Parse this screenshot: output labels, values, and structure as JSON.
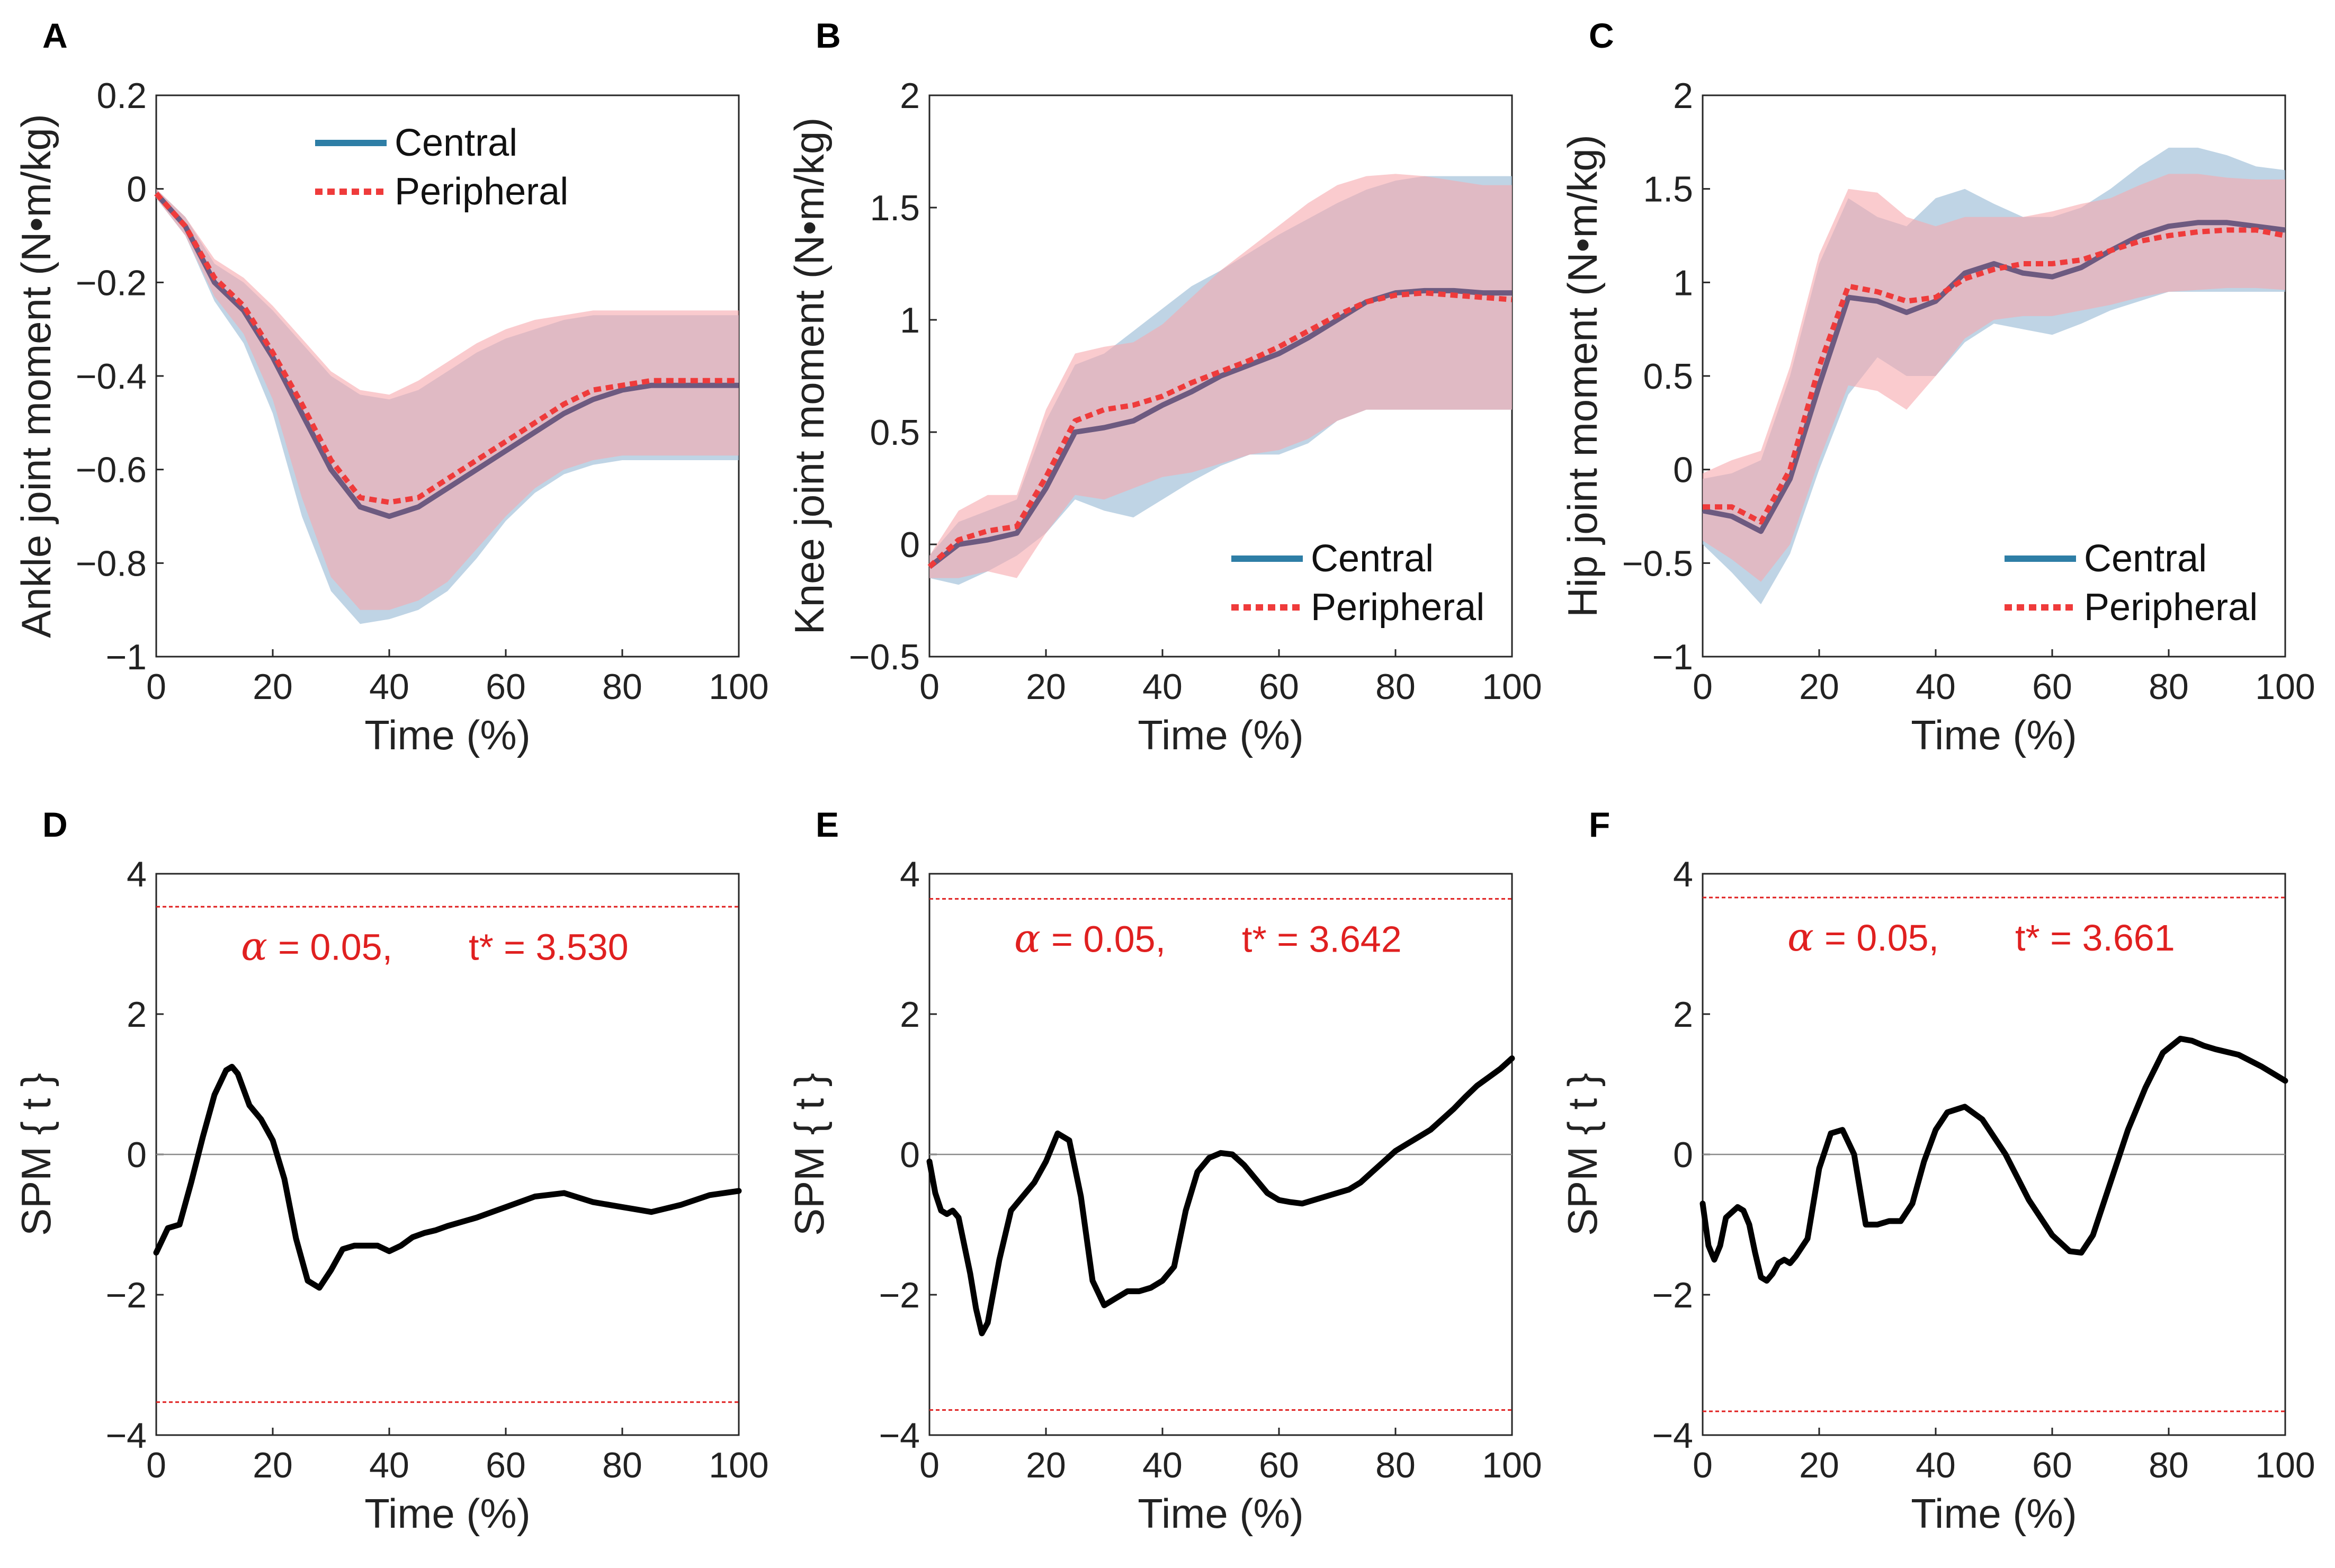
{
  "colors": {
    "central": "#2e7ea6",
    "central_band": "#a9c6dc",
    "peripheral": "#ef3b3b",
    "peripheral_band": "#f6a9ad",
    "overlap_line": "#6d5a80",
    "spm": "#000000",
    "threshold": "#e02020",
    "axis": "#262626"
  },
  "chart_data": [
    {
      "panel": "A",
      "type": "line",
      "title": "",
      "xlabel": "Time (%)",
      "ylabel": "Ankle joint moment (N•m/kg)",
      "xlim": [
        0,
        100
      ],
      "ylim": [
        -1,
        0.2
      ],
      "xticks": [
        "0",
        "20",
        "40",
        "60",
        "80",
        "100"
      ],
      "yticks": [
        "−1",
        "−0.8",
        "−0.6",
        "−0.4",
        "−0.2",
        "0",
        "0.2"
      ],
      "legend": [
        "Central",
        "Peripheral"
      ],
      "legend_position": "top-center",
      "x": [
        0,
        5,
        10,
        15,
        20,
        25,
        30,
        35,
        40,
        45,
        50,
        55,
        60,
        65,
        70,
        75,
        80,
        85,
        90,
        95,
        100
      ],
      "series": [
        {
          "name": "Central",
          "style": "solid",
          "values": [
            -0.01,
            -0.08,
            -0.2,
            -0.26,
            -0.36,
            -0.48,
            -0.6,
            -0.68,
            -0.7,
            -0.68,
            -0.64,
            -0.6,
            -0.56,
            -0.52,
            -0.48,
            -0.45,
            -0.43,
            -0.42,
            -0.42,
            -0.42,
            -0.42
          ],
          "band_upper": [
            0,
            -0.06,
            -0.16,
            -0.2,
            -0.26,
            -0.33,
            -0.4,
            -0.44,
            -0.45,
            -0.43,
            -0.39,
            -0.35,
            -0.32,
            -0.3,
            -0.28,
            -0.27,
            -0.27,
            -0.27,
            -0.27,
            -0.27,
            -0.27
          ],
          "band_lower": [
            -0.02,
            -0.1,
            -0.24,
            -0.33,
            -0.48,
            -0.7,
            -0.86,
            -0.93,
            -0.92,
            -0.9,
            -0.86,
            -0.79,
            -0.71,
            -0.65,
            -0.61,
            -0.59,
            -0.58,
            -0.58,
            -0.58,
            -0.58,
            -0.58
          ]
        },
        {
          "name": "Peripheral",
          "style": "dotted",
          "values": [
            -0.01,
            -0.08,
            -0.19,
            -0.25,
            -0.35,
            -0.46,
            -0.58,
            -0.66,
            -0.67,
            -0.66,
            -0.62,
            -0.58,
            -0.54,
            -0.5,
            -0.46,
            -0.43,
            -0.42,
            -0.41,
            -0.41,
            -0.41,
            -0.41
          ],
          "band_upper": [
            0,
            -0.06,
            -0.15,
            -0.19,
            -0.25,
            -0.32,
            -0.39,
            -0.43,
            -0.44,
            -0.41,
            -0.37,
            -0.33,
            -0.3,
            -0.28,
            -0.27,
            -0.26,
            -0.26,
            -0.26,
            -0.26,
            -0.26,
            -0.26
          ],
          "band_lower": [
            -0.02,
            -0.1,
            -0.23,
            -0.31,
            -0.45,
            -0.66,
            -0.83,
            -0.9,
            -0.9,
            -0.88,
            -0.84,
            -0.77,
            -0.7,
            -0.64,
            -0.6,
            -0.58,
            -0.57,
            -0.57,
            -0.57,
            -0.57,
            -0.57
          ]
        }
      ]
    },
    {
      "panel": "B",
      "type": "line",
      "title": "",
      "xlabel": "Time (%)",
      "ylabel": "Knee joint moment (N•m/kg)",
      "xlim": [
        0,
        100
      ],
      "ylim": [
        -0.5,
        2
      ],
      "xticks": [
        "0",
        "20",
        "40",
        "60",
        "80",
        "100"
      ],
      "yticks": [
        "−0.5",
        "0",
        "0.5",
        "1",
        "1.5",
        "2"
      ],
      "legend": [
        "Central",
        "Peripheral"
      ],
      "legend_position": "bottom-right",
      "x": [
        0,
        5,
        10,
        15,
        20,
        25,
        30,
        35,
        40,
        45,
        50,
        55,
        60,
        65,
        70,
        75,
        80,
        85,
        90,
        95,
        100
      ],
      "series": [
        {
          "name": "Central",
          "style": "solid",
          "values": [
            -0.1,
            0,
            0.02,
            0.05,
            0.25,
            0.5,
            0.52,
            0.55,
            0.62,
            0.68,
            0.75,
            0.8,
            0.85,
            0.92,
            1.0,
            1.08,
            1.12,
            1.13,
            1.13,
            1.12,
            1.12
          ],
          "band_upper": [
            -0.05,
            0.1,
            0.15,
            0.2,
            0.55,
            0.8,
            0.85,
            0.95,
            1.05,
            1.15,
            1.22,
            1.3,
            1.38,
            1.45,
            1.52,
            1.58,
            1.62,
            1.64,
            1.64,
            1.64,
            1.64
          ],
          "band_lower": [
            -0.15,
            -0.18,
            -0.12,
            -0.05,
            0.05,
            0.2,
            0.15,
            0.12,
            0.2,
            0.28,
            0.35,
            0.4,
            0.4,
            0.45,
            0.55,
            0.6,
            0.6,
            0.6,
            0.6,
            0.6,
            0.6
          ]
        },
        {
          "name": "Peripheral",
          "style": "dotted",
          "values": [
            -0.1,
            0.02,
            0.06,
            0.08,
            0.3,
            0.55,
            0.6,
            0.62,
            0.66,
            0.72,
            0.77,
            0.82,
            0.88,
            0.95,
            1.02,
            1.08,
            1.11,
            1.12,
            1.11,
            1.1,
            1.09
          ],
          "band_upper": [
            -0.05,
            0.15,
            0.22,
            0.22,
            0.6,
            0.85,
            0.88,
            0.9,
            0.98,
            1.1,
            1.22,
            1.32,
            1.42,
            1.52,
            1.6,
            1.64,
            1.65,
            1.64,
            1.62,
            1.6,
            1.6
          ],
          "band_lower": [
            -0.15,
            -0.15,
            -0.12,
            -0.15,
            0.05,
            0.22,
            0.2,
            0.25,
            0.3,
            0.32,
            0.36,
            0.4,
            0.42,
            0.47,
            0.55,
            0.6,
            0.6,
            0.6,
            0.6,
            0.6,
            0.6
          ]
        }
      ]
    },
    {
      "panel": "C",
      "type": "line",
      "title": "",
      "xlabel": "Time (%)",
      "ylabel": "Hip joint moment (N•m/kg)",
      "xlim": [
        0,
        100
      ],
      "ylim": [
        -1,
        2
      ],
      "xticks": [
        "0",
        "20",
        "40",
        "60",
        "80",
        "100"
      ],
      "yticks": [
        "−1",
        "−0.5",
        "0",
        "0.5",
        "1",
        "1.5",
        "2"
      ],
      "legend": [
        "Central",
        "Peripheral"
      ],
      "legend_position": "bottom-right",
      "x": [
        0,
        5,
        10,
        15,
        20,
        25,
        30,
        35,
        40,
        45,
        50,
        55,
        60,
        65,
        70,
        75,
        80,
        85,
        90,
        95,
        100
      ],
      "series": [
        {
          "name": "Central",
          "style": "solid",
          "values": [
            -0.22,
            -0.25,
            -0.33,
            -0.05,
            0.45,
            0.92,
            0.9,
            0.84,
            0.9,
            1.05,
            1.1,
            1.05,
            1.03,
            1.08,
            1.17,
            1.25,
            1.3,
            1.32,
            1.32,
            1.3,
            1.28
          ],
          "band_upper": [
            -0.05,
            -0.02,
            0.05,
            0.5,
            1.1,
            1.45,
            1.35,
            1.3,
            1.45,
            1.5,
            1.42,
            1.35,
            1.35,
            1.4,
            1.5,
            1.62,
            1.72,
            1.72,
            1.68,
            1.62,
            1.6
          ],
          "band_lower": [
            -0.4,
            -0.55,
            -0.72,
            -0.45,
            0.0,
            0.4,
            0.6,
            0.5,
            0.5,
            0.68,
            0.78,
            0.75,
            0.72,
            0.78,
            0.85,
            0.9,
            0.95,
            0.95,
            0.95,
            0.95,
            0.95
          ]
        },
        {
          "name": "Peripheral",
          "style": "dotted",
          "values": [
            -0.2,
            -0.2,
            -0.28,
            0.0,
            0.55,
            0.98,
            0.95,
            0.9,
            0.92,
            1.02,
            1.07,
            1.1,
            1.1,
            1.12,
            1.17,
            1.22,
            1.25,
            1.27,
            1.28,
            1.28,
            1.25
          ],
          "band_upper": [
            -0.02,
            0.05,
            0.1,
            0.55,
            1.15,
            1.5,
            1.48,
            1.35,
            1.3,
            1.35,
            1.35,
            1.35,
            1.38,
            1.42,
            1.45,
            1.52,
            1.58,
            1.58,
            1.56,
            1.55,
            1.55
          ],
          "band_lower": [
            -0.38,
            -0.48,
            -0.6,
            -0.4,
            0.05,
            0.45,
            0.42,
            0.32,
            0.5,
            0.7,
            0.8,
            0.82,
            0.82,
            0.85,
            0.88,
            0.92,
            0.95,
            0.96,
            0.97,
            0.97,
            0.96
          ]
        }
      ]
    },
    {
      "panel": "D",
      "type": "line",
      "title": "",
      "xlabel": "Time (%)",
      "ylabel": "SPM { t }",
      "xlim": [
        0,
        100
      ],
      "ylim": [
        -4,
        4
      ],
      "xticks": [
        "0",
        "20",
        "40",
        "60",
        "80",
        "100"
      ],
      "yticks": [
        "−4",
        "−2",
        "0",
        "2",
        "4"
      ],
      "threshold": 3.53,
      "annotation_alpha": "α",
      "annotation_text": " = 0.05,",
      "annotation_t": "t* = 3.530",
      "x": [
        0,
        2,
        4,
        6,
        8,
        10,
        12,
        13,
        14,
        16,
        18,
        20,
        22,
        24,
        26,
        28,
        30,
        32,
        34,
        36,
        38,
        40,
        42,
        44,
        46,
        48,
        50,
        55,
        60,
        65,
        70,
        75,
        80,
        85,
        90,
        95,
        100
      ],
      "series": [
        {
          "name": "SPM{t}",
          "style": "solid",
          "values": [
            -1.4,
            -1.05,
            -1.0,
            -0.4,
            0.25,
            0.85,
            1.2,
            1.25,
            1.15,
            0.7,
            0.5,
            0.2,
            -0.35,
            -1.2,
            -1.8,
            -1.9,
            -1.65,
            -1.35,
            -1.3,
            -1.3,
            -1.3,
            -1.38,
            -1.3,
            -1.18,
            -1.12,
            -1.08,
            -1.02,
            -0.9,
            -0.75,
            -0.6,
            -0.55,
            -0.68,
            -0.75,
            -0.82,
            -0.72,
            -0.58,
            -0.52
          ]
        }
      ]
    },
    {
      "panel": "E",
      "type": "line",
      "title": "",
      "xlabel": "Time (%)",
      "ylabel": "SPM { t }",
      "xlim": [
        0,
        100
      ],
      "ylim": [
        -4,
        4
      ],
      "xticks": [
        "0",
        "20",
        "40",
        "60",
        "80",
        "100"
      ],
      "yticks": [
        "−4",
        "−2",
        "0",
        "2",
        "4"
      ],
      "threshold": 3.642,
      "annotation_alpha": "α",
      "annotation_text": " = 0.05,",
      "annotation_t": "t* = 3.642",
      "x": [
        0,
        1,
        2,
        3,
        4,
        5,
        6,
        7,
        8,
        9,
        10,
        12,
        14,
        16,
        18,
        20,
        22,
        24,
        26,
        28,
        30,
        32,
        34,
        36,
        38,
        40,
        42,
        44,
        46,
        48,
        50,
        52,
        54,
        56,
        58,
        60,
        62,
        64,
        66,
        68,
        70,
        72,
        74,
        76,
        78,
        80,
        82,
        84,
        86,
        88,
        90,
        92,
        94,
        96,
        98,
        100
      ],
      "series": [
        {
          "name": "SPM{t}",
          "style": "solid",
          "values": [
            -0.1,
            -0.55,
            -0.8,
            -0.85,
            -0.8,
            -0.9,
            -1.3,
            -1.7,
            -2.2,
            -2.55,
            -2.4,
            -1.5,
            -0.8,
            -0.6,
            -0.4,
            -0.1,
            0.3,
            0.2,
            -0.6,
            -1.8,
            -2.15,
            -2.05,
            -1.95,
            -1.95,
            -1.9,
            -1.8,
            -1.6,
            -0.8,
            -0.25,
            -0.05,
            0.02,
            0.0,
            -0.15,
            -0.35,
            -0.55,
            -0.65,
            -0.68,
            -0.7,
            -0.65,
            -0.6,
            -0.55,
            -0.5,
            -0.4,
            -0.25,
            -0.1,
            0.05,
            0.15,
            0.25,
            0.35,
            0.5,
            0.65,
            0.82,
            0.98,
            1.1,
            1.22,
            1.37
          ]
        }
      ]
    },
    {
      "panel": "F",
      "type": "line",
      "title": "",
      "xlabel": "Time (%)",
      "ylabel": "SPM { t }",
      "xlim": [
        0,
        100
      ],
      "ylim": [
        -4,
        4
      ],
      "xticks": [
        "0",
        "20",
        "40",
        "60",
        "80",
        "100"
      ],
      "yticks": [
        "−4",
        "−2",
        "0",
        "2",
        "4"
      ],
      "threshold": 3.661,
      "annotation_alpha": "α",
      "annotation_text": " = 0.05,",
      "annotation_t": "t* = 3.661",
      "x": [
        0,
        1,
        2,
        3,
        4,
        6,
        7,
        8,
        9,
        10,
        11,
        12,
        13,
        14,
        15,
        16,
        18,
        20,
        22,
        24,
        26,
        28,
        30,
        32,
        34,
        36,
        38,
        40,
        42,
        45,
        48,
        52,
        56,
        60,
        63,
        65,
        67,
        70,
        73,
        76,
        79,
        82,
        84,
        86,
        88,
        92,
        96,
        100
      ],
      "series": [
        {
          "name": "SPM{t}",
          "style": "solid",
          "values": [
            -0.7,
            -1.3,
            -1.5,
            -1.3,
            -0.9,
            -0.75,
            -0.8,
            -1.0,
            -1.4,
            -1.75,
            -1.8,
            -1.7,
            -1.55,
            -1.5,
            -1.55,
            -1.45,
            -1.2,
            -0.2,
            0.3,
            0.35,
            0.0,
            -1.0,
            -1.0,
            -0.95,
            -0.95,
            -0.7,
            -0.1,
            0.35,
            0.6,
            0.68,
            0.5,
            0.0,
            -0.65,
            -1.15,
            -1.38,
            -1.4,
            -1.15,
            -0.4,
            0.35,
            0.95,
            1.45,
            1.65,
            1.62,
            1.55,
            1.5,
            1.42,
            1.25,
            1.05
          ]
        }
      ]
    }
  ]
}
